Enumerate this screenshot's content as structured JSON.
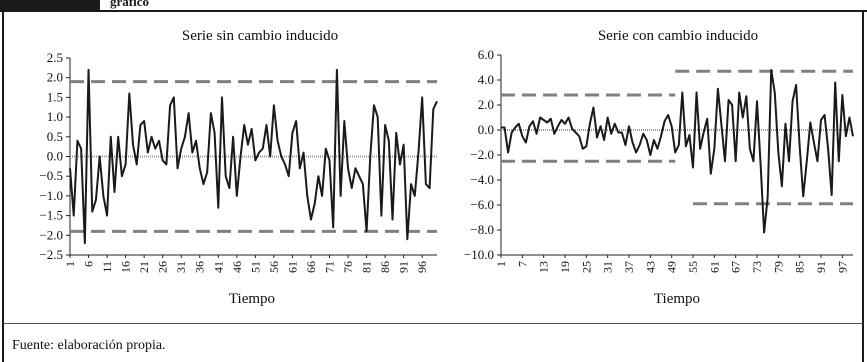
{
  "header": {
    "visible_text": "gráfico"
  },
  "footer": {
    "source": "Fuente: elaboración propia."
  },
  "colors": {
    "series": "#1a1a1a",
    "bands": "#808080",
    "zero": "#9a9a9a"
  },
  "chart_data": [
    {
      "type": "line",
      "title": "Serie sin cambio inducido",
      "xlabel": "Tiempo",
      "ylabel": "",
      "ylim": [
        -2.5,
        2.5
      ],
      "yticks": [
        "2.5",
        "2.0",
        "1.5",
        "1.0",
        "0.5",
        "0.0",
        "−0.5",
        "−1.0",
        "−1.5",
        "−2.0",
        "−2.5"
      ],
      "ytick_values": [
        2.5,
        2.0,
        1.5,
        1.0,
        0.5,
        0.0,
        -0.5,
        -1.0,
        -1.5,
        -2.0,
        -2.5
      ],
      "xticks": [
        "1",
        "6",
        "11",
        "16",
        "21",
        "26",
        "31",
        "36",
        "41",
        "46",
        "51",
        "56",
        "61",
        "66",
        "71",
        "76",
        "81",
        "86",
        "91",
        "96"
      ],
      "bands": [
        {
          "y": 1.9,
          "from": 1,
          "to": 100
        },
        {
          "y": -1.9,
          "from": 1,
          "to": 100
        }
      ],
      "series": [
        {
          "x_start": 1,
          "values": [
            -0.3,
            -1.5,
            0.4,
            0.2,
            -2.2,
            2.2,
            -1.4,
            -1.1,
            0.0,
            -1.0,
            -1.5,
            0.5,
            -0.9,
            0.5,
            -0.5,
            -0.2,
            1.6,
            0.3,
            -0.2,
            0.8,
            0.9,
            0.1,
            0.5,
            0.2,
            0.4,
            -0.1,
            -0.2,
            1.3,
            1.5,
            -0.3,
            0.2,
            0.5,
            1.1,
            0.1,
            0.4,
            -0.3,
            -0.7,
            -0.4,
            1.1,
            0.6,
            -1.3,
            1.5,
            -0.5,
            -0.8,
            0.5,
            -1.0,
            0.0,
            0.8,
            0.3,
            0.7,
            -0.1,
            0.1,
            0.2,
            0.8,
            0.0,
            1.3,
            0.4,
            0.0,
            -0.2,
            -0.5,
            0.6,
            0.9,
            -0.3,
            0.1,
            -1.0,
            -1.6,
            -1.2,
            -0.5,
            -1.0,
            0.2,
            -0.1,
            -1.8,
            2.2,
            -1.0,
            0.9,
            -0.3,
            -0.8,
            -0.3,
            -0.5,
            -0.7,
            -1.9,
            0.0,
            1.3,
            1.0,
            -1.5,
            0.8,
            0.4,
            -1.6,
            0.6,
            -0.2,
            0.3,
            -2.1,
            -0.7,
            -1.0,
            0.1,
            1.5,
            -0.7,
            -0.8,
            1.2,
            1.4
          ]
        }
      ]
    },
    {
      "type": "line",
      "title": "Serie con cambio inducido",
      "xlabel": "Tiempo",
      "ylabel": "",
      "ylim": [
        -10.0,
        6.0
      ],
      "yticks": [
        "6.0",
        "4.0",
        "2.0",
        "0.0",
        "−2.0",
        "−4.0",
        "−6.0",
        "−8.0",
        "−10.0"
      ],
      "ytick_values": [
        6.0,
        4.0,
        2.0,
        0.0,
        -2.0,
        -4.0,
        -6.0,
        -8.0,
        -10.0
      ],
      "xticks": [
        "1",
        "7",
        "13",
        "19",
        "25",
        "31",
        "37",
        "43",
        "49",
        "55",
        "61",
        "67",
        "73",
        "79",
        "85",
        "91",
        "97"
      ],
      "bands": [
        {
          "y": 2.8,
          "from": 1,
          "to": 50
        },
        {
          "y": -2.5,
          "from": 1,
          "to": 50
        },
        {
          "y": 4.7,
          "from": 50,
          "to": 100
        },
        {
          "y": -5.9,
          "from": 55,
          "to": 100
        }
      ],
      "series": [
        {
          "x_start": 1,
          "values": [
            0.2,
            0.2,
            -1.8,
            -0.2,
            0.2,
            0.5,
            -0.5,
            -1.0,
            0.3,
            0.7,
            -0.3,
            1.0,
            0.8,
            0.6,
            0.9,
            -0.3,
            0.3,
            0.8,
            0.5,
            1.0,
            0.1,
            -0.2,
            -0.5,
            -1.5,
            -1.3,
            0.5,
            1.8,
            -0.6,
            0.3,
            -0.8,
            1.0,
            -0.3,
            0.5,
            -0.2,
            -0.2,
            -1.2,
            0.3,
            -1.0,
            -1.8,
            -1.2,
            -0.3,
            -0.8,
            -2.0,
            -0.8,
            -1.5,
            -0.5,
            0.7,
            1.2,
            0.3,
            -1.8,
            -1.2,
            3.0,
            -1.3,
            -0.4,
            -3.0,
            3.0,
            -1.5,
            -0.2,
            0.9,
            -3.5,
            -1.5,
            3.3,
            0.4,
            -2.5,
            2.4,
            2.0,
            -2.5,
            3.0,
            1.0,
            2.7,
            -1.5,
            -2.5,
            2.3,
            -2.7,
            -8.2,
            -5.4,
            4.8,
            3.0,
            -1.8,
            -4.5,
            0.5,
            -2.5,
            2.3,
            3.6,
            -1.3,
            -5.3,
            -2.5,
            0.6,
            -1.0,
            -2.5,
            0.8,
            1.2,
            -1.5,
            -5.2,
            3.8,
            -2.5,
            2.8,
            -0.5,
            1.0,
            -0.5
          ]
        }
      ]
    }
  ]
}
